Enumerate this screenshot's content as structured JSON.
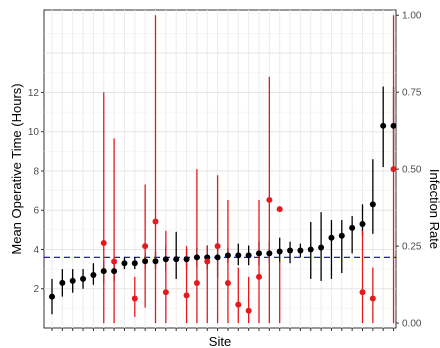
{
  "chart_data": {
    "type": "scatter",
    "title": "",
    "xlabel": "Site",
    "ylabel": "Mean Operative Time (Hours)",
    "y2label": "Infection Rate",
    "ylim": [
      0,
      16.2
    ],
    "yticks": [
      2,
      4,
      6,
      8,
      10,
      12
    ],
    "y2lim": [
      -0.016,
      1.017
    ],
    "y2ticks": [
      0.0,
      0.25,
      0.5,
      0.75,
      1.0
    ],
    "y2ticklabels": [
      "0.00",
      "0.25",
      "0.50",
      "0.75",
      "1.00"
    ],
    "grid": true,
    "legend": "none",
    "reference_line": {
      "axis": "y",
      "value": 3.6,
      "color": "#0000ff",
      "style": "dashed"
    },
    "colors": {
      "operative_time": "#000000",
      "infection_rate": "#e41a1c",
      "reference": "#0000cc"
    },
    "series": [
      {
        "axis": "left",
        "x": [
          1,
          2,
          3,
          4,
          5,
          6,
          7,
          8,
          9,
          10,
          11,
          12,
          13,
          14,
          15,
          16,
          17,
          18,
          19,
          20,
          21,
          22,
          23,
          24,
          25,
          26,
          27,
          28,
          29,
          30,
          31,
          32,
          33,
          34
        ],
        "values": [
          1.6,
          2.3,
          2.4,
          2.5,
          2.7,
          2.9,
          2.9,
          3.3,
          3.3,
          3.4,
          3.4,
          3.5,
          3.5,
          3.5,
          3.6,
          3.6,
          3.6,
          3.7,
          3.7,
          3.7,
          3.8,
          3.8,
          3.9,
          3.95,
          3.95,
          4.0,
          4.1,
          4.6,
          4.7,
          5.1,
          5.3,
          6.3,
          10.3,
          10.3
        ],
        "lower": [
          0.7,
          1.6,
          1.8,
          2.0,
          2.2,
          2.3,
          2.4,
          3.0,
          3.0,
          3.0,
          3.0,
          2.9,
          2.5,
          3.0,
          3.1,
          3.0,
          2.6,
          3.3,
          3.2,
          3.2,
          3.2,
          3.3,
          3.3,
          3.3,
          3.6,
          2.5,
          2.4,
          2.5,
          2.8,
          3.8,
          4.7,
          4.8,
          8.2,
          8.2
        ],
        "upper": [
          2.5,
          3.0,
          3.0,
          3.0,
          3.3,
          3.4,
          3.5,
          3.6,
          3.6,
          3.8,
          3.9,
          4.2,
          4.9,
          4.0,
          4.1,
          4.2,
          4.1,
          4.1,
          4.3,
          4.2,
          4.4,
          4.4,
          4.6,
          4.4,
          4.3,
          5.4,
          5.9,
          5.5,
          5.5,
          5.7,
          6.3,
          8.6,
          12.3,
          12.3
        ]
      },
      {
        "axis": "right",
        "x": [
          6,
          7,
          9,
          10,
          11,
          12,
          14,
          15,
          16,
          17,
          18,
          19,
          20,
          21,
          22,
          23,
          31,
          32,
          34
        ],
        "values": [
          0.26,
          0.2,
          0.08,
          0.25,
          0.33,
          0.1,
          0.09,
          0.13,
          0.2,
          0.25,
          0.13,
          0.06,
          0.04,
          0.15,
          0.4,
          0.37,
          0.1,
          0.08,
          0.5
        ],
        "lower": [
          0.0,
          0.0,
          0.02,
          0.05,
          0.0,
          0.0,
          0.0,
          0.0,
          0.0,
          0.0,
          0.0,
          0.0,
          0.0,
          0.0,
          0.0,
          0.0,
          0.0,
          0.0,
          0.0
        ],
        "upper": [
          0.75,
          0.6,
          0.15,
          0.45,
          1.0,
          0.3,
          0.25,
          0.5,
          0.25,
          0.48,
          0.4,
          0.18,
          0.15,
          0.4,
          0.8,
          0.2,
          0.3,
          0.18,
          1.0
        ]
      }
    ]
  }
}
